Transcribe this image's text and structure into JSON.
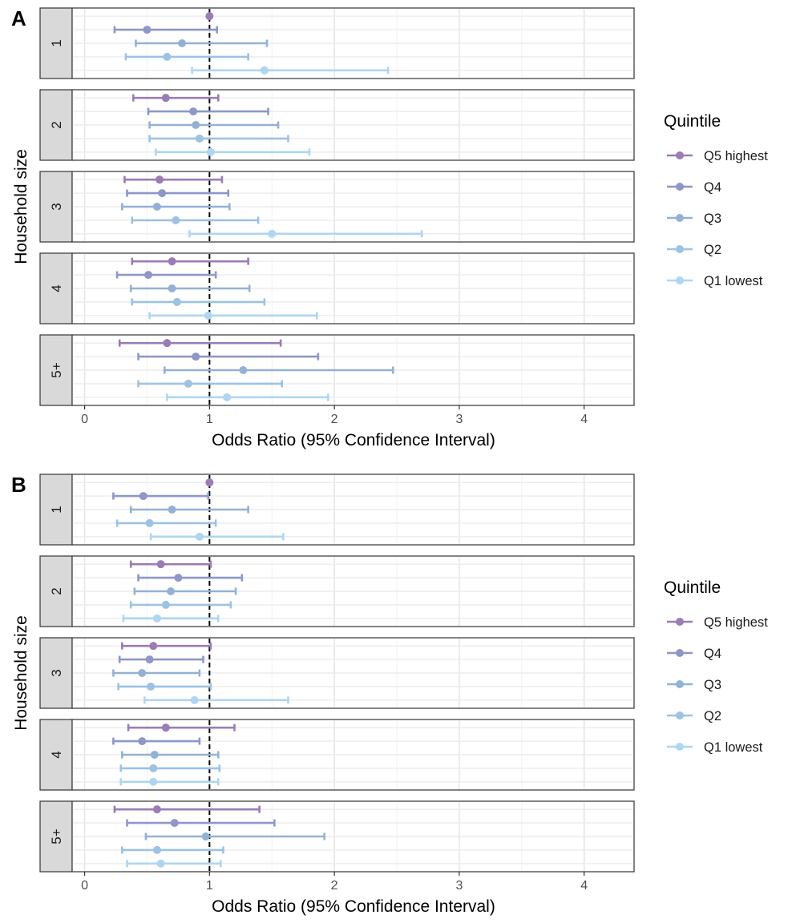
{
  "chart_data": [
    {
      "panel": "A",
      "type": "forest",
      "xlabel": "Odds Ratio (95% Confidence Interval)",
      "ylabel": "Household size",
      "xlim": [
        -0.1,
        4.4
      ],
      "xticks": [
        0,
        1,
        2,
        3,
        4
      ],
      "reference_line": 1,
      "legend": {
        "title": "Quintile",
        "position": "right"
      },
      "facets": [
        {
          "label": "1",
          "rows": [
            {
              "quintile": "Q5 highest",
              "or": 1.0,
              "lo": 1.0,
              "hi": 1.0
            },
            {
              "quintile": "Q4",
              "or": 0.5,
              "lo": 0.24,
              "hi": 1.06
            },
            {
              "quintile": "Q3",
              "or": 0.78,
              "lo": 0.41,
              "hi": 1.46
            },
            {
              "quintile": "Q2",
              "or": 0.66,
              "lo": 0.33,
              "hi": 1.31
            },
            {
              "quintile": "Q1 lowest",
              "or": 1.44,
              "lo": 0.86,
              "hi": 2.43
            }
          ]
        },
        {
          "label": "2",
          "rows": [
            {
              "quintile": "Q5 highest",
              "or": 0.65,
              "lo": 0.39,
              "hi": 1.07
            },
            {
              "quintile": "Q4",
              "or": 0.87,
              "lo": 0.51,
              "hi": 1.47
            },
            {
              "quintile": "Q3",
              "or": 0.89,
              "lo": 0.52,
              "hi": 1.55
            },
            {
              "quintile": "Q2",
              "or": 0.92,
              "lo": 0.52,
              "hi": 1.63
            },
            {
              "quintile": "Q1 lowest",
              "or": 1.01,
              "lo": 0.57,
              "hi": 1.8
            }
          ]
        },
        {
          "label": "3",
          "rows": [
            {
              "quintile": "Q5 highest",
              "or": 0.6,
              "lo": 0.32,
              "hi": 1.1
            },
            {
              "quintile": "Q4",
              "or": 0.62,
              "lo": 0.34,
              "hi": 1.15
            },
            {
              "quintile": "Q3",
              "or": 0.58,
              "lo": 0.3,
              "hi": 1.16
            },
            {
              "quintile": "Q2",
              "or": 0.73,
              "lo": 0.38,
              "hi": 1.39
            },
            {
              "quintile": "Q1 lowest",
              "or": 1.5,
              "lo": 0.84,
              "hi": 2.7
            }
          ]
        },
        {
          "label": "4",
          "rows": [
            {
              "quintile": "Q5 highest",
              "or": 0.7,
              "lo": 0.38,
              "hi": 1.31
            },
            {
              "quintile": "Q4",
              "or": 0.51,
              "lo": 0.26,
              "hi": 1.05
            },
            {
              "quintile": "Q3",
              "or": 0.7,
              "lo": 0.37,
              "hi": 1.32
            },
            {
              "quintile": "Q2",
              "or": 0.74,
              "lo": 0.38,
              "hi": 1.44
            },
            {
              "quintile": "Q1 lowest",
              "or": 0.99,
              "lo": 0.52,
              "hi": 1.86
            }
          ]
        },
        {
          "label": "5+",
          "rows": [
            {
              "quintile": "Q5 highest",
              "or": 0.66,
              "lo": 0.28,
              "hi": 1.57
            },
            {
              "quintile": "Q4",
              "or": 0.89,
              "lo": 0.43,
              "hi": 1.87
            },
            {
              "quintile": "Q3",
              "or": 1.27,
              "lo": 0.64,
              "hi": 2.47
            },
            {
              "quintile": "Q2",
              "or": 0.83,
              "lo": 0.43,
              "hi": 1.58
            },
            {
              "quintile": "Q1 lowest",
              "or": 1.14,
              "lo": 0.66,
              "hi": 1.95
            }
          ]
        }
      ]
    },
    {
      "panel": "B",
      "type": "forest",
      "xlabel": "Odds Ratio (95% Confidence Interval)",
      "ylabel": "Household size",
      "xlim": [
        -0.1,
        4.4
      ],
      "xticks": [
        0,
        1,
        2,
        3,
        4
      ],
      "reference_line": 1,
      "legend": {
        "title": "Quintile",
        "position": "right"
      },
      "facets": [
        {
          "label": "1",
          "rows": [
            {
              "quintile": "Q5 highest",
              "or": 1.0,
              "lo": 1.0,
              "hi": 1.0
            },
            {
              "quintile": "Q4",
              "or": 0.47,
              "lo": 0.23,
              "hi": 0.99
            },
            {
              "quintile": "Q3",
              "or": 0.7,
              "lo": 0.37,
              "hi": 1.31
            },
            {
              "quintile": "Q2",
              "or": 0.52,
              "lo": 0.26,
              "hi": 1.05
            },
            {
              "quintile": "Q1 lowest",
              "or": 0.92,
              "lo": 0.53,
              "hi": 1.59
            }
          ]
        },
        {
          "label": "2",
          "rows": [
            {
              "quintile": "Q5 highest",
              "or": 0.61,
              "lo": 0.37,
              "hi": 1.01
            },
            {
              "quintile": "Q4",
              "or": 0.75,
              "lo": 0.43,
              "hi": 1.26
            },
            {
              "quintile": "Q3",
              "or": 0.69,
              "lo": 0.4,
              "hi": 1.21
            },
            {
              "quintile": "Q2",
              "or": 0.65,
              "lo": 0.37,
              "hi": 1.17
            },
            {
              "quintile": "Q1 lowest",
              "or": 0.58,
              "lo": 0.31,
              "hi": 1.07
            }
          ]
        },
        {
          "label": "3",
          "rows": [
            {
              "quintile": "Q5 highest",
              "or": 0.55,
              "lo": 0.3,
              "hi": 1.01
            },
            {
              "quintile": "Q4",
              "or": 0.52,
              "lo": 0.28,
              "hi": 0.95
            },
            {
              "quintile": "Q3",
              "or": 0.46,
              "lo": 0.23,
              "hi": 0.92
            },
            {
              "quintile": "Q2",
              "or": 0.53,
              "lo": 0.27,
              "hi": 1.01
            },
            {
              "quintile": "Q1 lowest",
              "or": 0.88,
              "lo": 0.48,
              "hi": 1.63
            }
          ]
        },
        {
          "label": "4",
          "rows": [
            {
              "quintile": "Q5 highest",
              "or": 0.65,
              "lo": 0.35,
              "hi": 1.2
            },
            {
              "quintile": "Q4",
              "or": 0.46,
              "lo": 0.23,
              "hi": 0.92
            },
            {
              "quintile": "Q3",
              "or": 0.56,
              "lo": 0.3,
              "hi": 1.07
            },
            {
              "quintile": "Q2",
              "or": 0.55,
              "lo": 0.29,
              "hi": 1.08
            },
            {
              "quintile": "Q1 lowest",
              "or": 0.55,
              "lo": 0.29,
              "hi": 1.07
            }
          ]
        },
        {
          "label": "5+",
          "rows": [
            {
              "quintile": "Q5 highest",
              "or": 0.58,
              "lo": 0.24,
              "hi": 1.4
            },
            {
              "quintile": "Q4",
              "or": 0.72,
              "lo": 0.34,
              "hi": 1.52
            },
            {
              "quintile": "Q3",
              "or": 0.97,
              "lo": 0.49,
              "hi": 1.92
            },
            {
              "quintile": "Q2",
              "or": 0.58,
              "lo": 0.3,
              "hi": 1.11
            },
            {
              "quintile": "Q1 lowest",
              "or": 0.61,
              "lo": 0.34,
              "hi": 1.09
            }
          ]
        }
      ]
    }
  ],
  "colors": {
    "Q5 highest": "#9b7cb6",
    "Q4": "#8e97c8",
    "Q3": "#93b1d5",
    "Q2": "#9dc2e3",
    "Q1 lowest": "#aed6f1"
  },
  "legend_order": [
    "Q5 highest",
    "Q4",
    "Q3",
    "Q2",
    "Q1 lowest"
  ]
}
